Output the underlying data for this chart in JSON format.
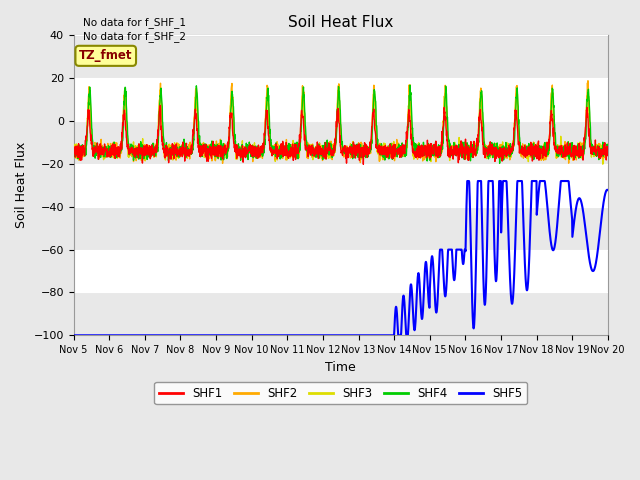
{
  "title": "Soil Heat Flux",
  "xlabel": "Time",
  "ylabel": "Soil Heat Flux",
  "ylim": [
    -100,
    40
  ],
  "yticks": [
    -100,
    -80,
    -60,
    -40,
    -20,
    0,
    20,
    40
  ],
  "background_color": "#e8e8e8",
  "plot_bg_color": "#ffffff",
  "grid_band_color": "#e8e8e8",
  "text_no_data": [
    "No data for f_SHF_1",
    "No data for f_SHF_2"
  ],
  "label_box_text": "TZ_fmet",
  "label_box_bg": "#ffff99",
  "label_box_border": "#888800",
  "legend_labels": [
    "SHF1",
    "SHF2",
    "SHF3",
    "SHF4",
    "SHF5"
  ],
  "legend_colors": [
    "#ff0000",
    "#ffaa00",
    "#dddd00",
    "#00cc00",
    "#0000ff"
  ],
  "line_width": 1.0,
  "xtick_labels": [
    "Nov 5",
    "Nov 6",
    "Nov 7",
    "Nov 8",
    "Nov 9",
    "Nov 10",
    "Nov 11",
    "Nov 12",
    "Nov 13",
    "Nov 14",
    "Nov 15",
    "Nov 16",
    "Nov 17",
    "Nov 18",
    "Nov 19",
    "Nov 20"
  ],
  "num_days": 15,
  "points_per_day": 144
}
